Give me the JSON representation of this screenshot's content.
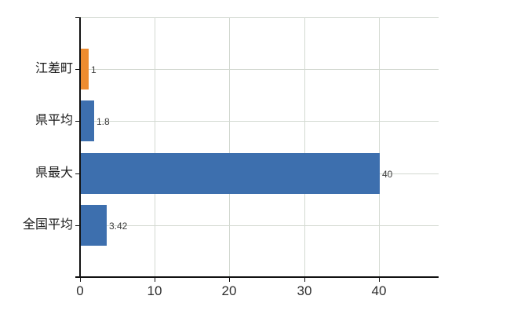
{
  "chart_data": {
    "type": "bar",
    "orientation": "horizontal",
    "title": "",
    "xlabel": "",
    "ylabel": "",
    "categories": [
      "江差町",
      "県平均",
      "県最大",
      "全国平均"
    ],
    "values": [
      1,
      1.8,
      40,
      3.42
    ],
    "value_labels": [
      "1",
      "1.8",
      "40",
      "3.42"
    ],
    "bar_colors": [
      "#EE8C2F",
      "#3D6FAE",
      "#3D6FAE",
      "#3D6FAE"
    ],
    "x_ticks": [
      0,
      10,
      20,
      30,
      40
    ],
    "x_tick_labels": [
      "0",
      "10",
      "20",
      "30",
      "40"
    ],
    "xlim": [
      0,
      48
    ],
    "grid": true,
    "legend": false
  },
  "style": {
    "highlight_bar_color": "#EE8C2F",
    "default_bar_color": "#3D6FAE",
    "grid_color": "#D3D9D1",
    "axis_color": "#111111",
    "value_label_color": "#3C3C3C",
    "tick_label_color": "#2E2E2E",
    "category_label_color": "#1A1A1A",
    "background_color": "#FFFFFF"
  }
}
